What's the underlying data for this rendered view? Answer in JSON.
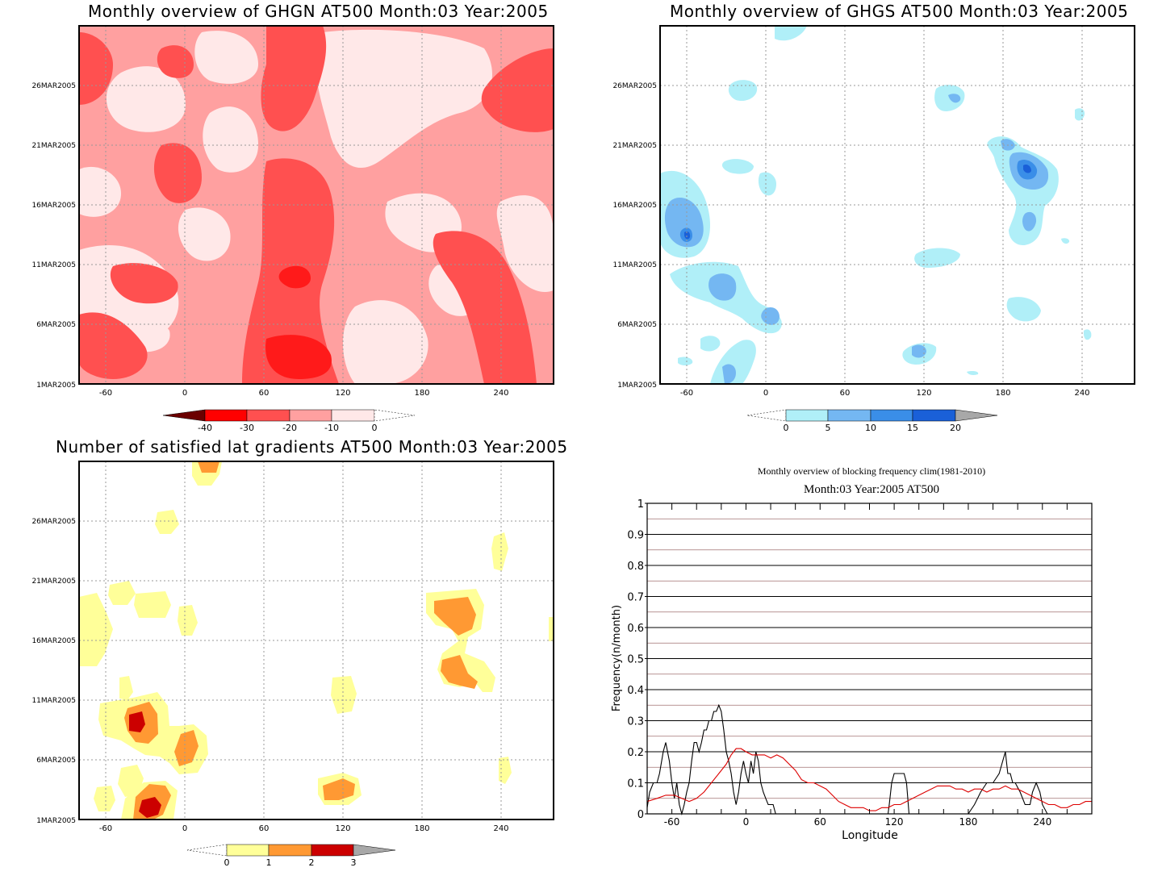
{
  "panels": {
    "ghgn": {
      "title": "Monthly overview of GHGN AT500 Month:03 Year:2005",
      "y_ticks": [
        "26MAR2005",
        "21MAR2005",
        "16MAR2005",
        "11MAR2005",
        "6MAR2005",
        "1MAR2005"
      ],
      "x_ticks": [
        "-60",
        "0",
        "60",
        "120",
        "180",
        "240"
      ],
      "colorbar": {
        "labels": [
          "-40",
          "-30",
          "-20",
          "-10",
          "0"
        ],
        "colors": [
          "#6b0000",
          "#ff0000",
          "#ff5050",
          "#ffa0a0",
          "#ffe8e8"
        ]
      }
    },
    "ghgs": {
      "title": "Monthly overview of GHGS AT500 Month:03 Year:2005",
      "y_ticks": [
        "26MAR2005",
        "21MAR2005",
        "16MAR2005",
        "11MAR2005",
        "6MAR2005",
        "1MAR2005"
      ],
      "x_ticks": [
        "-60",
        "0",
        "60",
        "120",
        "180",
        "240"
      ],
      "colorbar": {
        "labels": [
          "0",
          "5",
          "10",
          "15",
          "20"
        ],
        "colors": [
          "#b0eff8",
          "#74b7f2",
          "#3a8ee8",
          "#1a60d8",
          "#a8a8a8"
        ]
      }
    },
    "lat_gradients": {
      "title": "Number of satisfied lat gradients AT500 Month:03 Year:2005",
      "y_ticks": [
        "26MAR2005",
        "21MAR2005",
        "16MAR2005",
        "11MAR2005",
        "6MAR2005",
        "1MAR2005"
      ],
      "x_ticks": [
        "-60",
        "0",
        "60",
        "120",
        "180",
        "240"
      ],
      "colorbar": {
        "labels": [
          "0",
          "1",
          "2",
          "3"
        ],
        "colors": [
          "#ffff99",
          "#ff9933",
          "#cc0000",
          "#a8a8a8"
        ]
      }
    },
    "frequency": {
      "suptitle": "Monthly overview of blocking frequency clim(1981-2010)",
      "title": "Month:03 Year:2005  AT500"
    }
  },
  "chart_data": [
    {
      "type": "heatmap",
      "title": "Monthly overview of GHGN AT500 Month:03 Year:2005",
      "xlabel": "",
      "ylabel": "",
      "xlim": [
        -78,
        282
      ],
      "x_ticks": [
        -60,
        0,
        60,
        120,
        180,
        240
      ],
      "y_ticks": [
        "1MAR2005",
        "6MAR2005",
        "11MAR2005",
        "16MAR2005",
        "21MAR2005",
        "26MAR2005"
      ],
      "levels": [
        -40,
        -30,
        -20,
        -10,
        0
      ],
      "colorbar_labels": [
        "-40",
        "-30",
        "-20",
        "-10",
        "0"
      ],
      "grid": true
    },
    {
      "type": "heatmap",
      "title": "Monthly overview of GHGS AT500 Month:03 Year:2005",
      "xlabel": "",
      "ylabel": "",
      "xlim": [
        -78,
        282
      ],
      "x_ticks": [
        -60,
        0,
        60,
        120,
        180,
        240
      ],
      "y_ticks": [
        "1MAR2005",
        "6MAR2005",
        "11MAR2005",
        "16MAR2005",
        "21MAR2005",
        "26MAR2005"
      ],
      "levels": [
        0,
        5,
        10,
        15,
        20
      ],
      "colorbar_labels": [
        "0",
        "5",
        "10",
        "15",
        "20"
      ],
      "grid": true
    },
    {
      "type": "heatmap",
      "title": "Number of satisfied lat gradients AT500 Month:03 Year:2005",
      "xlabel": "",
      "ylabel": "",
      "xlim": [
        -78,
        282
      ],
      "x_ticks": [
        -60,
        0,
        60,
        120,
        180,
        240
      ],
      "y_ticks": [
        "1MAR2005",
        "6MAR2005",
        "11MAR2005",
        "16MAR2005",
        "21MAR2005",
        "26MAR2005"
      ],
      "levels": [
        0,
        1,
        2,
        3
      ],
      "colorbar_labels": [
        "0",
        "1",
        "2",
        "3"
      ],
      "grid": true
    },
    {
      "type": "line",
      "suptitle": "Monthly overview of blocking frequency clim(1981-2010)",
      "title": "Month:03 Year:2005  AT500",
      "xlabel": "Longitude",
      "ylabel": "Frequency(n/month)",
      "xlim": [
        -80,
        280
      ],
      "ylim": [
        0,
        1
      ],
      "x_ticks": [
        -60,
        0,
        60,
        120,
        180,
        240
      ],
      "y_ticks": [
        0,
        0.1,
        0.2,
        0.3,
        0.4,
        0.5,
        0.6,
        0.7,
        0.8,
        0.9,
        1
      ],
      "y_tick_labels": [
        "0",
        "0.1",
        "0.2",
        "0.3",
        "0.4",
        "0.5",
        "0.6",
        "0.7",
        "0.8",
        "0.9",
        "1"
      ],
      "grid": true,
      "series": [
        {
          "color": "#000000",
          "x": [
            -80,
            -78,
            -75,
            -72,
            -70,
            -67,
            -65,
            -62,
            -60,
            -58,
            -56,
            -54,
            -52,
            -50,
            -48,
            -46,
            -44,
            -42,
            -40,
            -38,
            -36,
            -34,
            -32,
            -30,
            -28,
            -26,
            -24,
            -22,
            -20,
            -18,
            -16,
            -14,
            -12,
            -10,
            -8,
            -6,
            -4,
            -2,
            0,
            2,
            4,
            6,
            8,
            10,
            12,
            14,
            16,
            18,
            20,
            22,
            24,
            26,
            28,
            30,
            35,
            40,
            60,
            80,
            100,
            115,
            116,
            118,
            120,
            125,
            128,
            130,
            132,
            140,
            160,
            180,
            185,
            190,
            195,
            200,
            205,
            210,
            212,
            214,
            216,
            218,
            222,
            226,
            228,
            230,
            232,
            235,
            238,
            240,
            244,
            248,
            250,
            260,
            270,
            280
          ],
          "values": [
            0.02,
            0.07,
            0.1,
            0.1,
            0.13,
            0.2,
            0.23,
            0.17,
            0.1,
            0.05,
            0.1,
            0.03,
            0.0,
            0.03,
            0.07,
            0.1,
            0.17,
            0.23,
            0.23,
            0.2,
            0.23,
            0.27,
            0.27,
            0.3,
            0.3,
            0.33,
            0.33,
            0.35,
            0.33,
            0.27,
            0.2,
            0.17,
            0.13,
            0.07,
            0.03,
            0.07,
            0.13,
            0.17,
            0.13,
            0.1,
            0.17,
            0.13,
            0.2,
            0.17,
            0.1,
            0.07,
            0.05,
            0.03,
            0.03,
            0.03,
            0.0,
            0.0,
            0.0,
            0.0,
            0.0,
            0.0,
            0.0,
            0.0,
            0.0,
            0.0,
            0.03,
            0.1,
            0.13,
            0.13,
            0.13,
            0.1,
            0.0,
            0.0,
            0.0,
            0.0,
            0.03,
            0.07,
            0.1,
            0.1,
            0.13,
            0.2,
            0.13,
            0.13,
            0.1,
            0.1,
            0.07,
            0.03,
            0.03,
            0.03,
            0.07,
            0.1,
            0.07,
            0.03,
            0.0,
            0.0,
            0.0,
            0.0,
            0.0,
            0.0
          ]
        },
        {
          "color": "#dd0000",
          "x": [
            -80,
            -72,
            -65,
            -58,
            -52,
            -46,
            -40,
            -34,
            -28,
            -22,
            -16,
            -12,
            -8,
            -4,
            0,
            5,
            10,
            15,
            20,
            25,
            30,
            35,
            40,
            45,
            50,
            55,
            60,
            65,
            70,
            75,
            80,
            85,
            90,
            95,
            100,
            105,
            110,
            115,
            120,
            125,
            130,
            135,
            140,
            145,
            150,
            155,
            160,
            165,
            170,
            175,
            180,
            185,
            190,
            195,
            200,
            205,
            210,
            215,
            220,
            225,
            230,
            235,
            240,
            245,
            250,
            255,
            260,
            265,
            270,
            275,
            280
          ],
          "values": [
            0.04,
            0.05,
            0.06,
            0.06,
            0.05,
            0.04,
            0.05,
            0.07,
            0.1,
            0.13,
            0.16,
            0.19,
            0.21,
            0.21,
            0.2,
            0.19,
            0.19,
            0.19,
            0.18,
            0.19,
            0.18,
            0.16,
            0.14,
            0.11,
            0.1,
            0.1,
            0.09,
            0.08,
            0.06,
            0.04,
            0.03,
            0.02,
            0.02,
            0.02,
            0.01,
            0.01,
            0.02,
            0.02,
            0.03,
            0.03,
            0.04,
            0.05,
            0.06,
            0.07,
            0.08,
            0.09,
            0.09,
            0.09,
            0.08,
            0.08,
            0.07,
            0.08,
            0.08,
            0.07,
            0.08,
            0.08,
            0.09,
            0.08,
            0.08,
            0.07,
            0.06,
            0.05,
            0.04,
            0.03,
            0.03,
            0.02,
            0.02,
            0.03,
            0.03,
            0.04,
            0.04
          ]
        }
      ]
    }
  ]
}
